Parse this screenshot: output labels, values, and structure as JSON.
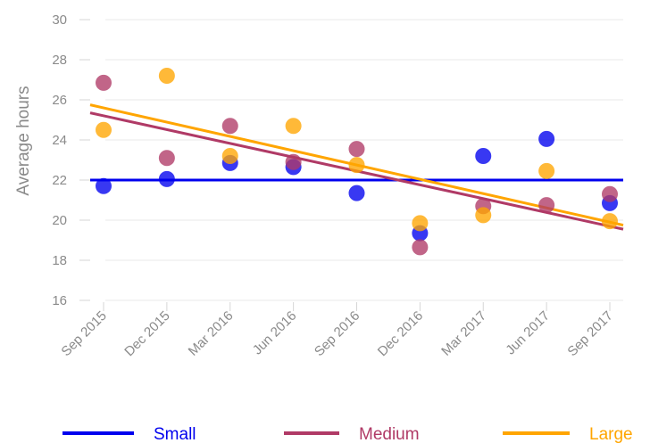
{
  "chart_data": {
    "type": "scatter",
    "ylabel": "Average hours",
    "xlabel": "",
    "ylim": [
      16,
      30
    ],
    "yticks": [
      16,
      18,
      20,
      22,
      24,
      26,
      28,
      30
    ],
    "categories": [
      "Sep 2015",
      "Dec 2015",
      "Mar 2016",
      "Jun 2016",
      "Sep 2016",
      "Dec 2016",
      "Mar 2017",
      "Jun 2017",
      "Sep 2017"
    ],
    "grid": true,
    "legend_position": "bottom",
    "series": [
      {
        "name": "Small",
        "color": "#0000ee",
        "values": [
          21.7,
          22.05,
          22.85,
          22.65,
          21.35,
          19.35,
          23.2,
          24.05,
          20.85
        ],
        "trend": [
          22.0,
          22.0
        ]
      },
      {
        "name": "Medium",
        "color": "#b03a66",
        "values": [
          26.85,
          23.1,
          24.7,
          22.9,
          23.55,
          18.65,
          20.7,
          20.75,
          21.3
        ],
        "trend": [
          25.35,
          19.55
        ]
      },
      {
        "name": "Large",
        "color": "#ffa500",
        "values": [
          24.5,
          27.2,
          23.2,
          24.7,
          22.75,
          19.85,
          20.25,
          22.45,
          19.95
        ],
        "trend": [
          25.75,
          19.75
        ]
      }
    ]
  }
}
